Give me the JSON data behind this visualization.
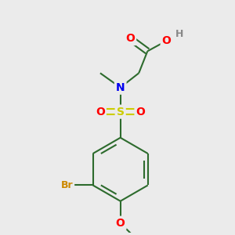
{
  "bg_color": "#ebebeb",
  "bond_color": "#2d6b2d",
  "bond_width": 1.5,
  "atom_colors": {
    "O": "#ff0000",
    "N": "#0000ee",
    "S": "#cccc00",
    "Br": "#cc8800",
    "H": "#888888",
    "C": "#2d6b2d"
  },
  "font_size": 10
}
